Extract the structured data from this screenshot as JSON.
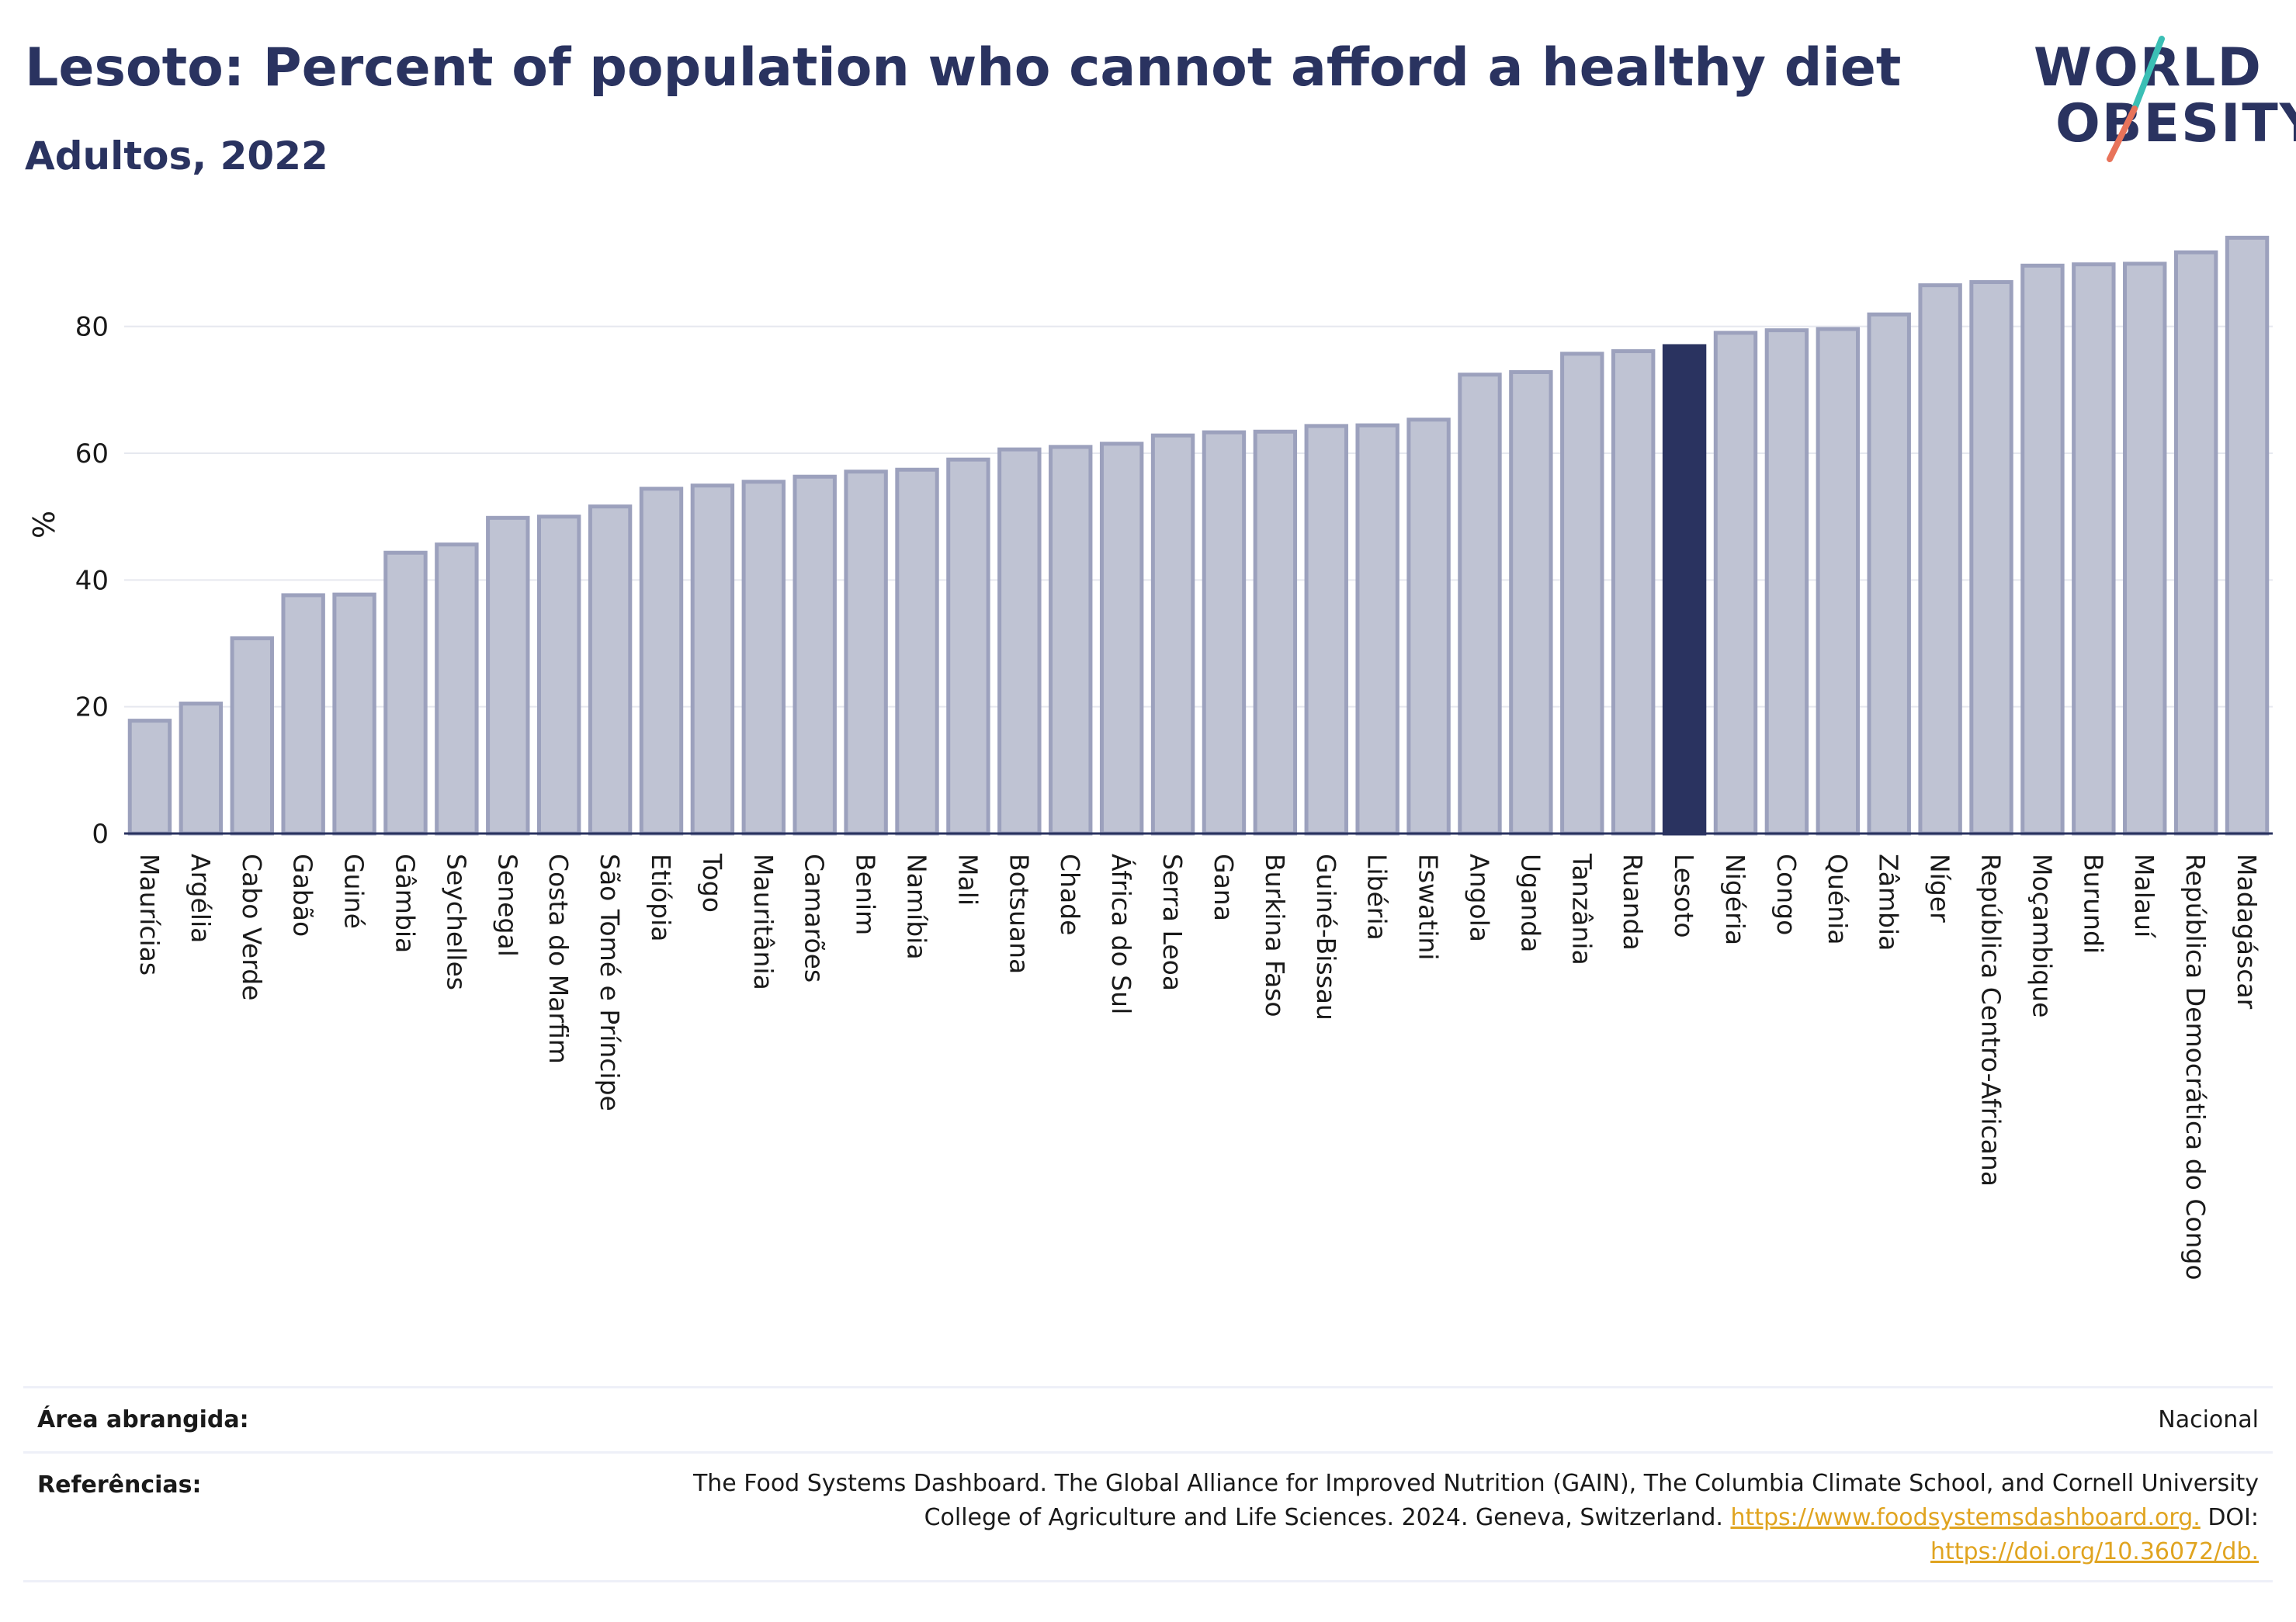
{
  "header": {
    "title": "Lesoto: Percent of population who cannot afford a healthy diet",
    "subtitle": "Adultos, 2022"
  },
  "logo": {
    "line1": "WORLD",
    "line2": "OBESITY",
    "accent_colors": [
      "#3bbfb5",
      "#e8735a"
    ]
  },
  "colors": {
    "bar_default": "#bfc3d3",
    "bar_default_stroke": "#9ca1bd",
    "bar_highlight": "#2a3360",
    "axis": "#2a3360",
    "grid": "#e6e8ef",
    "link": "#e0a420"
  },
  "chart_data": {
    "type": "bar",
    "title": "Lesoto: Percent of population who cannot afford a healthy diet",
    "subtitle": "Adultos, 2022",
    "xlabel": "",
    "ylabel": "%",
    "ylim": [
      0,
      96
    ],
    "yticks": [
      0,
      20,
      40,
      60,
      80
    ],
    "grid": true,
    "highlight": "Lesoto",
    "categories": [
      "Maurícias",
      "Argélia",
      "Cabo Verde",
      "Gabão",
      "Guiné",
      "Gâmbia",
      "Seychelles",
      "Senegal",
      "Costa do Marfim",
      "São Tomé e Príncipe",
      "Etiópia",
      "Togo",
      "Mauritânia",
      "Camarões",
      "Benim",
      "Namíbia",
      "Mali",
      "Botsuana",
      "Chade",
      "África do Sul",
      "Serra Leoa",
      "Gana",
      "Burkina Faso",
      "Guiné-Bissau",
      "Libéria",
      "Eswatini",
      "Angola",
      "Uganda",
      "Tanzânia",
      "Ruanda",
      "Lesoto",
      "Nigéria",
      "Congo",
      "Quénia",
      "Zâmbia",
      "Níger",
      "República Centro-Africana",
      "Moçambique",
      "Burundi",
      "Malauí",
      "República Democrática do Congo",
      "Madagáscar"
    ],
    "values": [
      17.8,
      20.5,
      30.8,
      37.6,
      37.7,
      44.3,
      45.6,
      49.8,
      50.0,
      51.6,
      54.4,
      54.9,
      55.5,
      56.3,
      57.1,
      57.4,
      59.0,
      60.6,
      61.0,
      61.5,
      62.8,
      63.3,
      63.4,
      64.3,
      64.4,
      65.3,
      72.4,
      72.8,
      75.7,
      76.1,
      76.9,
      79.0,
      79.4,
      79.6,
      81.9,
      86.5,
      87.0,
      89.6,
      89.8,
      89.9,
      91.7,
      94.0
    ]
  },
  "footer": {
    "area_label": "Área abrangida:",
    "area_value": "Nacional",
    "ref_label": "Referências:",
    "ref_line1": "The Food Systems Dashboard. The Global Alliance for Improved Nutrition (GAIN), The Columbia Climate School, and Cornell University",
    "ref_line2_text": "College of Agriculture and Life Sciences. 2024. Geneva, Switzerland. ",
    "ref_link1": "https://www.foodsystemsdashboard.org.",
    "ref_doi_label": " DOI:",
    "ref_link2": "https://doi.org/10.36072/db."
  }
}
